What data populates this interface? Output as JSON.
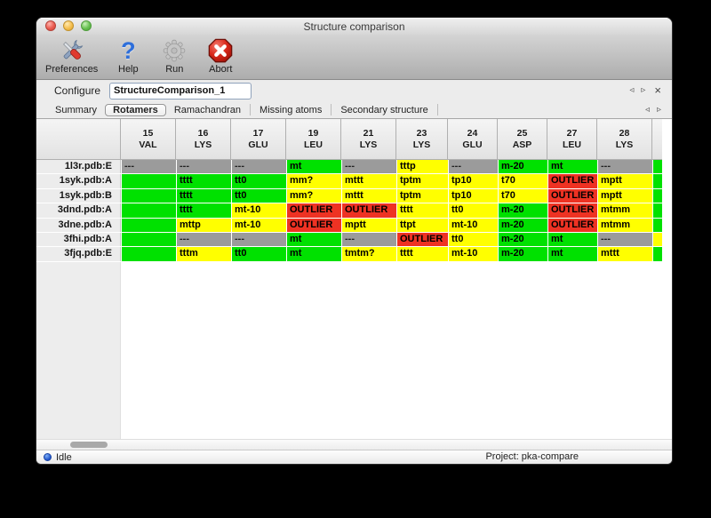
{
  "window": {
    "title": "Structure comparison"
  },
  "toolbar": {
    "items": [
      {
        "label": "Preferences",
        "icon": "tools-icon"
      },
      {
        "label": "Help",
        "icon": "help-icon"
      },
      {
        "label": "Run",
        "icon": "gear-icon"
      },
      {
        "label": "Abort",
        "icon": "abort-icon"
      }
    ]
  },
  "icons": {
    "help_glyph": "?",
    "close_glyph": "×",
    "arrow_left": "◃",
    "arrow_right": "▹"
  },
  "configure": {
    "label": "Configure",
    "value": "StructureComparison_1"
  },
  "tabs": {
    "items": [
      "Summary",
      "Rotamers",
      "Ramachandran",
      "Missing atoms",
      "Secondary structure"
    ],
    "selected": "Rotamers"
  },
  "table": {
    "columns": [
      {
        "num": "15",
        "res": "VAL"
      },
      {
        "num": "16",
        "res": "LYS"
      },
      {
        "num": "17",
        "res": "GLU"
      },
      {
        "num": "19",
        "res": "LEU"
      },
      {
        "num": "21",
        "res": "LYS"
      },
      {
        "num": "23",
        "res": "LYS"
      },
      {
        "num": "24",
        "res": "GLU"
      },
      {
        "num": "25",
        "res": "ASP"
      },
      {
        "num": "27",
        "res": "LEU"
      },
      {
        "num": "28",
        "res": "LYS"
      }
    ],
    "rows": [
      {
        "label": "1l3r.pdb:E",
        "cells": [
          {
            "v": "---",
            "s": "missing"
          },
          {
            "v": "---",
            "s": "missing"
          },
          {
            "v": "---",
            "s": "missing"
          },
          {
            "v": "mt",
            "s": "ok"
          },
          {
            "v": "---",
            "s": "missing"
          },
          {
            "v": "tttp",
            "s": "warn"
          },
          {
            "v": "---",
            "s": "missing"
          },
          {
            "v": "m-20",
            "s": "ok"
          },
          {
            "v": "mt",
            "s": "ok"
          },
          {
            "v": "---",
            "s": "missing"
          }
        ],
        "edge": "ok"
      },
      {
        "label": "1syk.pdb:A",
        "cells": [
          {
            "v": "",
            "s": "ok"
          },
          {
            "v": "tttt",
            "s": "ok"
          },
          {
            "v": "tt0",
            "s": "ok"
          },
          {
            "v": "mm?",
            "s": "warn"
          },
          {
            "v": "mttt",
            "s": "warn"
          },
          {
            "v": "tptm",
            "s": "warn"
          },
          {
            "v": "tp10",
            "s": "warn"
          },
          {
            "v": "t70",
            "s": "warn"
          },
          {
            "v": "OUTLIER",
            "s": "outlier"
          },
          {
            "v": "mptt",
            "s": "warn"
          }
        ],
        "edge": "ok"
      },
      {
        "label": "1syk.pdb:B",
        "cells": [
          {
            "v": "",
            "s": "ok"
          },
          {
            "v": "tttt",
            "s": "ok"
          },
          {
            "v": "tt0",
            "s": "ok"
          },
          {
            "v": "mm?",
            "s": "warn"
          },
          {
            "v": "mttt",
            "s": "warn"
          },
          {
            "v": "tptm",
            "s": "warn"
          },
          {
            "v": "tp10",
            "s": "warn"
          },
          {
            "v": "t70",
            "s": "warn"
          },
          {
            "v": "OUTLIER",
            "s": "outlier"
          },
          {
            "v": "mptt",
            "s": "warn"
          }
        ],
        "edge": "ok"
      },
      {
        "label": "3dnd.pdb:A",
        "cells": [
          {
            "v": "",
            "s": "ok"
          },
          {
            "v": "tttt",
            "s": "ok"
          },
          {
            "v": "mt-10",
            "s": "warn"
          },
          {
            "v": "OUTLIER",
            "s": "outlier"
          },
          {
            "v": "OUTLIER",
            "s": "outlier"
          },
          {
            "v": "tttt",
            "s": "warn"
          },
          {
            "v": "tt0",
            "s": "warn"
          },
          {
            "v": "m-20",
            "s": "ok"
          },
          {
            "v": "OUTLIER",
            "s": "outlier"
          },
          {
            "v": "mtmm",
            "s": "warn"
          }
        ],
        "edge": "ok"
      },
      {
        "label": "3dne.pdb:A",
        "cells": [
          {
            "v": "",
            "s": "ok"
          },
          {
            "v": "mttp",
            "s": "warn"
          },
          {
            "v": "mt-10",
            "s": "warn"
          },
          {
            "v": "OUTLIER",
            "s": "outlier"
          },
          {
            "v": "mptt",
            "s": "warn"
          },
          {
            "v": "ttpt",
            "s": "warn"
          },
          {
            "v": "mt-10",
            "s": "warn"
          },
          {
            "v": "m-20",
            "s": "ok"
          },
          {
            "v": "OUTLIER",
            "s": "outlier"
          },
          {
            "v": "mtmm",
            "s": "warn"
          }
        ],
        "edge": "ok"
      },
      {
        "label": "3fhi.pdb:A",
        "cells": [
          {
            "v": "",
            "s": "ok"
          },
          {
            "v": "---",
            "s": "missing"
          },
          {
            "v": "---",
            "s": "missing"
          },
          {
            "v": "mt",
            "s": "ok"
          },
          {
            "v": "---",
            "s": "missing"
          },
          {
            "v": "OUTLIER",
            "s": "outlier"
          },
          {
            "v": "tt0",
            "s": "warn"
          },
          {
            "v": "m-20",
            "s": "ok"
          },
          {
            "v": "mt",
            "s": "ok"
          },
          {
            "v": "---",
            "s": "missing"
          }
        ],
        "edge": "warn"
      },
      {
        "label": "3fjq.pdb:E",
        "cells": [
          {
            "v": "",
            "s": "ok"
          },
          {
            "v": "tttm",
            "s": "warn"
          },
          {
            "v": "tt0",
            "s": "ok"
          },
          {
            "v": "mt",
            "s": "ok"
          },
          {
            "v": "tmtm?",
            "s": "warn"
          },
          {
            "v": "tttt",
            "s": "warn"
          },
          {
            "v": "mt-10",
            "s": "warn"
          },
          {
            "v": "m-20",
            "s": "ok"
          },
          {
            "v": "mt",
            "s": "ok"
          },
          {
            "v": "mttt",
            "s": "warn"
          }
        ],
        "edge": "ok"
      }
    ]
  },
  "status_bar": {
    "state": "Idle",
    "project": "Project: pka-compare"
  },
  "colors": {
    "ok": "#00e100",
    "warn": "#ffff00",
    "outlier": "#ee3223",
    "missing": "#9b9b9b"
  }
}
